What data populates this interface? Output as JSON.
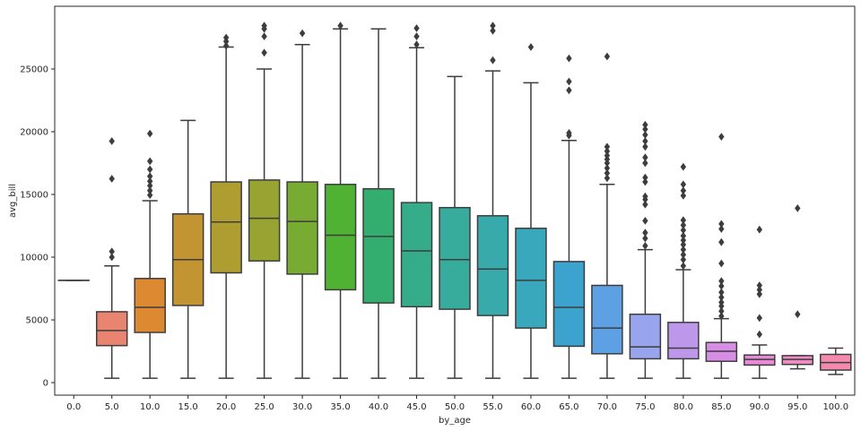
{
  "chart_data": {
    "type": "box",
    "xlabel": "by_age",
    "ylabel": "avg_bill",
    "ylim": [
      -1000,
      30000
    ],
    "yticks": [
      0,
      5000,
      10000,
      15000,
      20000,
      25000
    ],
    "legend": "none",
    "grid": false,
    "categories": [
      "0.0",
      "5.0",
      "10.0",
      "15.0",
      "20.0",
      "25.0",
      "30.0",
      "35.0",
      "40.0",
      "45.0",
      "50.0",
      "55.0",
      "60.0",
      "65.0",
      "70.0",
      "75.0",
      "80.0",
      "85.0",
      "90.0",
      "95.0",
      "100.0"
    ],
    "boxes": [
      {
        "category": "0.0",
        "whislo": 8150,
        "q1": 8150,
        "med": 8150,
        "q3": 8150,
        "whishi": 8150,
        "fliers": [],
        "color": "#f77189"
      },
      {
        "category": "5.0",
        "whislo": 350,
        "q1": 2950,
        "med": 4150,
        "q3": 5650,
        "whishi": 9300,
        "fliers": [
          10000,
          10450,
          16250,
          19250
        ],
        "color": "#e8846f"
      },
      {
        "category": "10.0",
        "whislo": 350,
        "q1": 4000,
        "med": 6000,
        "q3": 8300,
        "whishi": 14500,
        "fliers": [
          14950,
          15300,
          15700,
          16050,
          16450,
          17000,
          17650,
          19850
        ],
        "color": "#dc8932"
      },
      {
        "category": "15.0",
        "whislo": 350,
        "q1": 6150,
        "med": 9800,
        "q3": 13450,
        "whishi": 20900,
        "fliers": [],
        "color": "#c39532"
      },
      {
        "category": "20.0",
        "whislo": 350,
        "q1": 8750,
        "med": 12800,
        "q3": 16000,
        "whishi": 26750,
        "fliers": [
          26850,
          27200,
          27500
        ],
        "color": "#ae9d31"
      },
      {
        "category": "25.0",
        "whislo": 350,
        "q1": 9700,
        "med": 13100,
        "q3": 16150,
        "whishi": 25000,
        "fliers": [
          26300,
          27600,
          28200,
          28450
        ],
        "color": "#97a431"
      },
      {
        "category": "30.0",
        "whislo": 350,
        "q1": 8650,
        "med": 12850,
        "q3": 16000,
        "whishi": 26950,
        "fliers": [
          27850
        ],
        "color": "#77ab31"
      },
      {
        "category": "35.0",
        "whislo": 350,
        "q1": 7400,
        "med": 11750,
        "q3": 15800,
        "whishi": 28200,
        "fliers": [
          28450
        ],
        "color": "#4fb233"
      },
      {
        "category": "40.0",
        "whislo": 350,
        "q1": 6350,
        "med": 11650,
        "q3": 15450,
        "whishi": 28200,
        "fliers": [],
        "color": "#34ae6e"
      },
      {
        "category": "45.0",
        "whislo": 350,
        "q1": 6050,
        "med": 10500,
        "q3": 14350,
        "whishi": 26700,
        "fliers": [
          26950,
          27600,
          28250
        ],
        "color": "#36ad8a"
      },
      {
        "category": "50.0",
        "whislo": 350,
        "q1": 5850,
        "med": 9800,
        "q3": 13950,
        "whishi": 24400,
        "fliers": [],
        "color": "#37ab9c"
      },
      {
        "category": "55.0",
        "whislo": 350,
        "q1": 5350,
        "med": 9050,
        "q3": 13300,
        "whishi": 24850,
        "fliers": [
          25700,
          28050,
          28450
        ],
        "color": "#38aaac"
      },
      {
        "category": "60.0",
        "whislo": 350,
        "q1": 4350,
        "med": 8150,
        "q3": 12300,
        "whishi": 23900,
        "fliers": [
          26750
        ],
        "color": "#39a7bc"
      },
      {
        "category": "65.0",
        "whislo": 350,
        "q1": 2900,
        "med": 6000,
        "q3": 9650,
        "whishi": 19300,
        "fliers": [
          19700,
          19900,
          23300,
          24000,
          25850
        ],
        "color": "#3ba3ce"
      },
      {
        "category": "70.0",
        "whislo": 350,
        "q1": 2300,
        "med": 4350,
        "q3": 7750,
        "whishi": 15800,
        "fliers": [
          16300,
          16700,
          17100,
          17500,
          17800,
          18100,
          18450,
          18800,
          26000
        ],
        "color": "#5ea0e4"
      },
      {
        "category": "75.0",
        "whislo": 350,
        "q1": 1900,
        "med": 2850,
        "q3": 5450,
        "whishi": 10600,
        "fliers": [
          10900,
          11500,
          11950,
          12900,
          14200,
          14600,
          14850,
          16000,
          16350,
          17500,
          17950,
          18800,
          19250,
          19750,
          20200,
          20550
        ],
        "color": "#98a4ec"
      },
      {
        "category": "80.0",
        "whislo": 350,
        "q1": 1900,
        "med": 2750,
        "q3": 4800,
        "whishi": 9000,
        "fliers": [
          9300,
          9800,
          10200,
          10600,
          11000,
          11350,
          11700,
          12150,
          12550,
          12950,
          14900,
          15300,
          15800,
          17200
        ],
        "color": "#bd98ea"
      },
      {
        "category": "85.0",
        "whislo": 350,
        "q1": 1700,
        "med": 2500,
        "q3": 3200,
        "whishi": 5100,
        "fliers": [
          5300,
          5700,
          6100,
          6400,
          6800,
          7200,
          7700,
          8100,
          9500,
          11200,
          12250,
          12650,
          19600
        ],
        "color": "#d98ee6"
      },
      {
        "category": "90.0",
        "whislo": 350,
        "q1": 1400,
        "med": 1850,
        "q3": 2200,
        "whishi": 3000,
        "fliers": [
          3850,
          5150,
          7050,
          7400,
          7750,
          12200
        ],
        "color": "#e98ad9"
      },
      {
        "category": "95.0",
        "whislo": 1100,
        "q1": 1450,
        "med": 1850,
        "q3": 2150,
        "whishi": 2150,
        "fliers": [
          5450,
          13900
        ],
        "color": "#f08cc4"
      },
      {
        "category": "100.0",
        "whislo": 650,
        "q1": 1000,
        "med": 1600,
        "q3": 2250,
        "whishi": 2750,
        "fliers": [],
        "color": "#f48aae"
      }
    ]
  }
}
